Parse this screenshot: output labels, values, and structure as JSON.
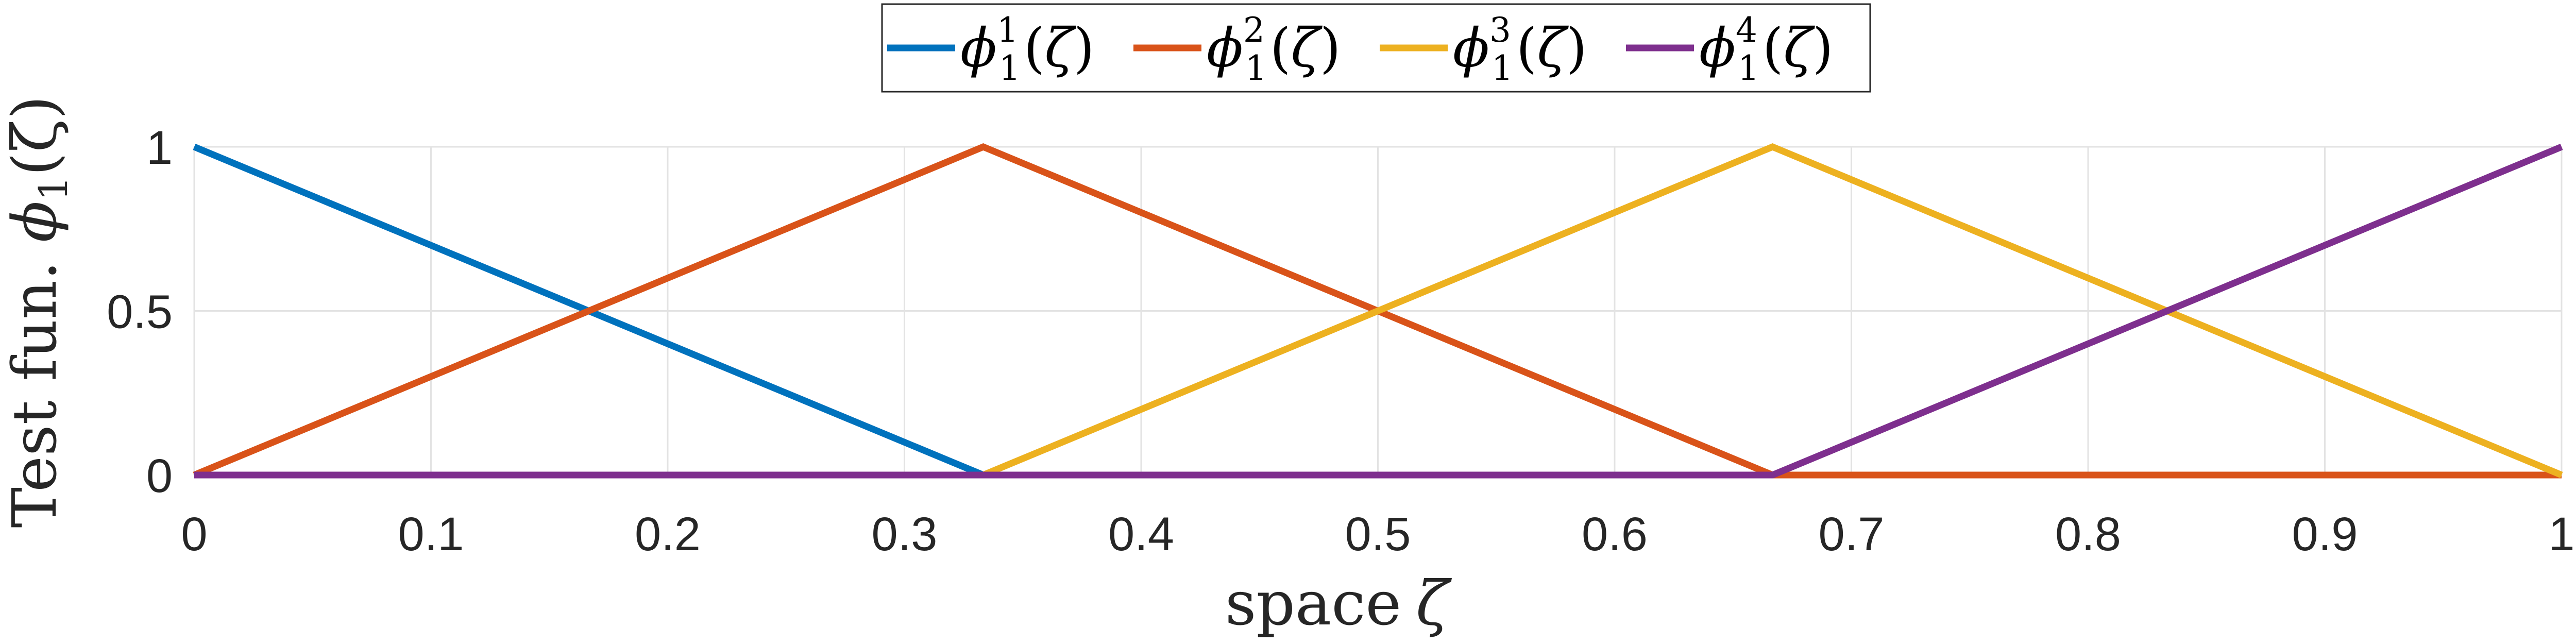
{
  "chart_data": {
    "type": "line",
    "xlabel_text": "space",
    "xlabel_symbol": "ζ",
    "ylabel_text": "Test fun.",
    "ylabel_symbol": "ϕ",
    "ylabel_sub": "1",
    "ylabel_arg": "(ζ)",
    "xlim": [
      0,
      1
    ],
    "ylim": [
      0,
      1
    ],
    "grid": true,
    "legend_placement": "top-center",
    "xticks": [
      0,
      0.1,
      0.2,
      0.3,
      0.4,
      0.5,
      0.6,
      0.7,
      0.8,
      0.9,
      1
    ],
    "xtick_labels": [
      "0",
      "0.1",
      "0.2",
      "0.3",
      "0.4",
      "0.5",
      "0.6",
      "0.7",
      "0.8",
      "0.9",
      "1"
    ],
    "yticks": [
      0,
      0.5,
      1
    ],
    "ytick_labels": [
      "0",
      "0.5",
      "1"
    ],
    "series": [
      {
        "name": "ϕ11(ζ)",
        "sup": "1",
        "sub": "1",
        "color": "#0072BD",
        "x": [
          0,
          0.3333,
          0.6667,
          1
        ],
        "y": [
          1,
          0,
          0,
          0
        ]
      },
      {
        "name": "ϕ21(ζ)",
        "sup": "2",
        "sub": "1",
        "color": "#D95319",
        "x": [
          0,
          0.3333,
          0.6667,
          1
        ],
        "y": [
          0,
          1,
          0,
          0
        ]
      },
      {
        "name": "ϕ31(ζ)",
        "sup": "3",
        "sub": "1",
        "color": "#EDB120",
        "x": [
          0,
          0.3333,
          0.6667,
          1
        ],
        "y": [
          0,
          0,
          1,
          0
        ]
      },
      {
        "name": "ϕ41(ζ)",
        "sup": "4",
        "sub": "1",
        "color": "#7E2F8E",
        "x": [
          0,
          0.3333,
          0.6667,
          1
        ],
        "y": [
          0,
          0,
          0,
          1
        ]
      }
    ]
  }
}
